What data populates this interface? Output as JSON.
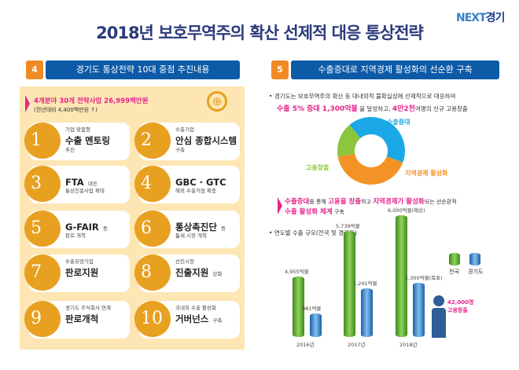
{
  "title": "2018년 보호무역주의 확산 선제적 대응 통상전략",
  "logo": {
    "next": "NEXT",
    "gg": "경기"
  },
  "left": {
    "number": "4",
    "header": "경기도 통상전략 10대 중점 추진내용",
    "highlight": "4개분야 30개 전략사업 26,999백만원",
    "sub": "(전년대비 4,400백만원 ↑)",
    "items": [
      {
        "n": "1",
        "pre": "기업 맞춤형",
        "main": "수출 멘토링",
        "post": "추진",
        "icon": "people-icon"
      },
      {
        "n": "2",
        "pre": "수출기업",
        "main": "안심 종합시스템",
        "post": "구축",
        "icon": "computer-icon"
      },
      {
        "n": "3",
        "pre": "",
        "main": "FTA",
        "tail": "대응",
        "post": "통상진흥사업 확대",
        "icon": "document-icon"
      },
      {
        "n": "4",
        "pre": "",
        "main": "GBC · GTC",
        "post": "해외 수출거점 확충",
        "icon": "globe-icon"
      },
      {
        "n": "5",
        "pre": "",
        "main": "G-FAIR",
        "tail": "등",
        "post": "판로 개척",
        "icon": "presentation-icon"
      },
      {
        "n": "6",
        "pre": "",
        "main": "통상촉진단",
        "tail": "등",
        "post": "틈새 시장 개척",
        "icon": "airplane-icon"
      },
      {
        "n": "7",
        "pre": "수출유망기업",
        "main": "판로지원",
        "post": "",
        "icon": "handshake-icon"
      },
      {
        "n": "8",
        "pre": "선진시장",
        "main": "진출지원",
        "tail": "강화",
        "post": "",
        "icon": "document-icon"
      },
      {
        "n": "9",
        "pre": "경기도 주식회사 연계",
        "main": "판로개척",
        "post": "",
        "icon": "ship-icon"
      },
      {
        "n": "10",
        "pre": "국내외 수출 활성화",
        "main": "거버넌스",
        "tail": "구축",
        "post": "",
        "icon": "network-icon"
      }
    ]
  },
  "right": {
    "number": "5",
    "header": "수출증대로 지역경제 활성화의 선순환 구축",
    "bullet1": "경기도는 보호무역주의 확산 등 대내외적 불확실성에 선제적으로 대응하여",
    "line2a": "수출 5% 증대 1,300억불",
    "line2b": " 을 달성하고, ",
    "line2c": "4만2천",
    "line2d": "여명의 신규 고용창출",
    "donut": {
      "labels": [
        "수출증대",
        "지역경제 활성화",
        "고용창출"
      ],
      "colors": [
        "#1aa9e6",
        "#f39325",
        "#8cc63f"
      ]
    },
    "cycle": {
      "a": "수출증대",
      "b": "를 통해 ",
      "c": "고용을 창출",
      "d": "하고 ",
      "e": "지역경제가 활성화",
      "f": "되는 선순환적",
      "g": "수출 활성화 체계",
      "h": " 구축"
    },
    "chart_title": "연도별 수출 규모(전국 및 경기도)",
    "employment": {
      "value": "42,000명",
      "label": "고용창출"
    }
  },
  "chart_data": {
    "type": "bar",
    "categories": [
      "2016년",
      "2017년",
      "2018년"
    ],
    "series": [
      {
        "name": "전국",
        "values": [
          4955,
          5739,
          6000
        ],
        "labels": [
          "4,955억불",
          "5,739억불",
          "6,000억불(예상)"
        ],
        "color": "#5cae2e"
      },
      {
        "name": "경기도",
        "values": [
          981,
          1241,
          1300
        ],
        "labels": [
          "981억불",
          "1,241억불",
          "1,300억불(목표)"
        ],
        "color": "#3d8fd6"
      }
    ],
    "title": "연도별 수출 규모(전국 및 경기도)",
    "legend": "right"
  }
}
